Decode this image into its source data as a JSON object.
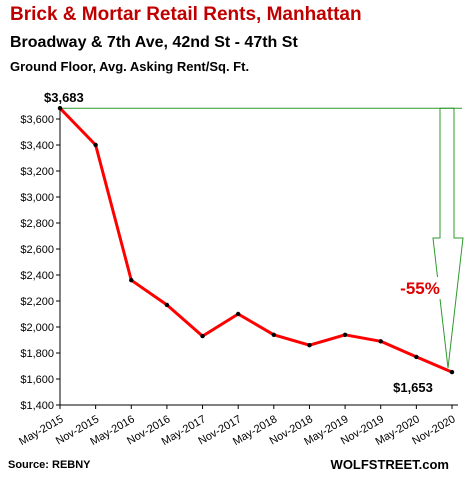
{
  "chart_data": {
    "type": "line",
    "title": "Brick & Mortar Retail Rents, Manhattan",
    "subtitle": "Broadway & 7th Ave, 42nd St - 47th St",
    "subtitle2": "Ground Floor, Avg. Asking Rent/Sq. Ft.",
    "categories": [
      "May-2015",
      "Nov-2015",
      "May-2016",
      "Nov-2016",
      "May-2017",
      "Nov-2017",
      "May-2018",
      "Nov-2018",
      "May-2019",
      "Nov-2019",
      "May-2020",
      "Nov-2020"
    ],
    "series": [
      {
        "values": [
          3683,
          3400,
          2360,
          2170,
          1930,
          2100,
          1940,
          1860,
          1940,
          1890,
          1770,
          1653
        ]
      }
    ],
    "ylim": [
      1400,
      3700
    ],
    "yticks": [
      1400,
      1600,
      1800,
      2000,
      2200,
      2400,
      2600,
      2800,
      3000,
      3200,
      3400,
      3600
    ],
    "ytick_labels": [
      "$1,400",
      "$1,600",
      "$1,800",
      "$2,000",
      "$2,200",
      "$2,400",
      "$2,600",
      "$2,800",
      "$3,000",
      "$3,200",
      "$3,400",
      "$3,600"
    ],
    "annotations": {
      "first_label": "$3,683",
      "last_label": "$1,653",
      "change_label": "-55%"
    },
    "line_color": "#ff0000",
    "annotation_color": "#2e9a2e",
    "change_color": "#e00000",
    "grid": false
  },
  "footer": {
    "source": "Source: REBNY",
    "brand": "WOLFSTREET.com"
  }
}
